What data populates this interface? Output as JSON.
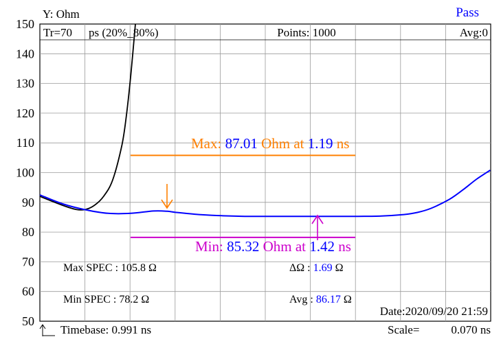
{
  "chart_data": {
    "type": "line",
    "ylabel": "Y: Ohm",
    "ylim": [
      50,
      150
    ],
    "xlim_ns": [
      0,
      0.991
    ],
    "grid": true,
    "yticks": [
      "150",
      "140",
      "130",
      "120",
      "110",
      "100",
      "90",
      "80",
      "70",
      "60",
      "50"
    ],
    "status": "Pass",
    "header": {
      "tr": "Tr=70",
      "tr_unit": "ps (20%_80%)",
      "points": "Points: 1000",
      "avg": "Avg:0"
    },
    "max_marker": {
      "prefix": "Max:",
      "value": "87.01",
      "mid": "Ohm at",
      "time": "1.19",
      "unit": "ns",
      "level_ohm": 105.8
    },
    "min_marker": {
      "prefix": "Min:",
      "value": "85.32",
      "mid": "Ohm at",
      "time": "1.42",
      "unit": "ns",
      "level_ohm": 78.2
    },
    "stats": {
      "max_spec_label": "Max SPEC :",
      "max_spec_value": "105.8 Ω",
      "min_spec_label": "Min  SPEC :",
      "min_spec_value": "78.2  Ω",
      "delta_label": "ΔΩ  :",
      "delta_value": "1.69",
      "delta_unit": "Ω",
      "avg_label": "Avg :",
      "avg_value": "86.17",
      "avg_unit": "Ω",
      "date": "Date:2020/09/20 21:59"
    },
    "footer": {
      "timebase": "Timebase: 0.991  ns",
      "scale_label": "Scale=",
      "scale_value": "0.070 ns"
    },
    "series": [
      {
        "color": "#0000ff",
        "x": [
          0,
          0.05,
          0.1,
          0.15,
          0.2,
          0.25,
          0.28,
          0.3,
          0.35,
          0.4,
          0.45,
          0.5,
          0.55,
          0.6,
          0.65,
          0.7,
          0.75,
          0.8,
          0.83,
          0.86,
          0.9,
          0.93,
          0.96,
          0.99
        ],
        "y": [
          92.5,
          89.5,
          87.5,
          86.3,
          86.3,
          87.1,
          87.0,
          86.6,
          85.9,
          85.5,
          85.3,
          85.3,
          85.3,
          85.3,
          85.3,
          85.3,
          85.4,
          85.9,
          86.6,
          88.0,
          91.0,
          94.2,
          97.8,
          100.8
        ]
      },
      {
        "color": "#000000",
        "x": [
          0,
          0.05,
          0.08,
          0.1,
          0.12,
          0.14,
          0.16,
          0.18,
          0.19,
          0.2,
          0.21
        ],
        "y": [
          92.0,
          89.0,
          87.6,
          87.6,
          89.0,
          92.0,
          97.5,
          109.0,
          119.0,
          133.0,
          150.0
        ]
      }
    ]
  }
}
